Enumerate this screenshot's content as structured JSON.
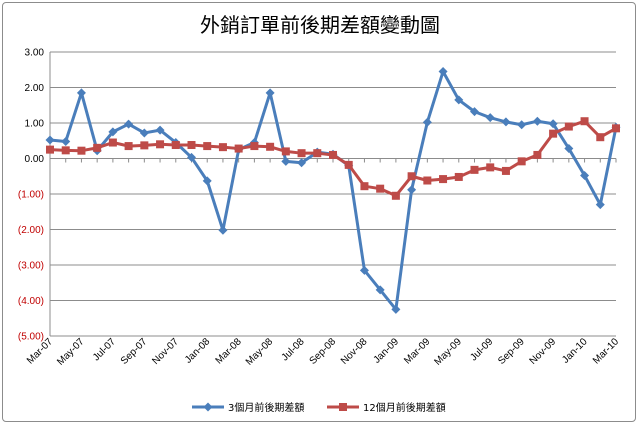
{
  "chart_data": {
    "type": "line",
    "title": "外銷訂單前後期差額變動圖",
    "xlabel": "",
    "ylabel": "",
    "ylim": [
      -5,
      3
    ],
    "y_ticks": [
      "3.00",
      "2.00",
      "1.00",
      "0.00",
      "(1.00)",
      "(2.00)",
      "(3.00)",
      "(4.00)",
      "(5.00)"
    ],
    "y_tick_values": [
      3,
      2,
      1,
      0,
      -1,
      -2,
      -3,
      -4,
      -5
    ],
    "negative_tick_color": "#c00000",
    "grid": true,
    "legend_position": "bottom",
    "x": [
      "Mar-07",
      "Apr-07",
      "May-07",
      "Jun-07",
      "Jul-07",
      "Aug-07",
      "Sep-07",
      "Oct-07",
      "Nov-07",
      "Dec-07",
      "Jan-08",
      "Feb-08",
      "Mar-08",
      "Apr-08",
      "May-08",
      "Jun-08",
      "Jul-08",
      "Aug-08",
      "Sep-08",
      "Oct-08",
      "Nov-08",
      "Dec-08",
      "Jan-09",
      "Feb-09",
      "Mar-09",
      "Apr-09",
      "May-09",
      "Jun-09",
      "Jul-09",
      "Aug-09",
      "Sep-09",
      "Oct-09",
      "Nov-09",
      "Dec-09",
      "Jan-10",
      "Feb-10",
      "Mar-10"
    ],
    "x_tick_labels": [
      "Mar-07",
      "May-07",
      "Jul-07",
      "Sep-07",
      "Nov-07",
      "Jan-08",
      "Mar-08",
      "May-08",
      "Jul-08",
      "Sep-08",
      "Nov-08",
      "Jan-09",
      "Mar-09",
      "May-09",
      "Jul-09",
      "Sep-09",
      "Nov-09",
      "Jan-10",
      "Mar-10"
    ],
    "series": [
      {
        "name": "3個月前後期差額",
        "color": "#4a7ebb",
        "marker": "diamond",
        "values": [
          0.52,
          0.48,
          1.85,
          0.22,
          0.75,
          0.97,
          0.72,
          0.8,
          0.45,
          0.03,
          -0.63,
          -2.02,
          0.25,
          0.45,
          1.85,
          -0.08,
          -0.12,
          0.18,
          0.12,
          -0.2,
          -3.15,
          -3.7,
          -4.25,
          -0.88,
          1.02,
          2.45,
          1.65,
          1.32,
          1.15,
          1.03,
          0.95,
          1.05,
          0.98,
          0.28,
          -0.48,
          -1.3,
          0.88
        ]
      },
      {
        "name": "12個月前後期差額",
        "color": "#be4b48",
        "marker": "square",
        "values": [
          0.25,
          0.23,
          0.22,
          0.3,
          0.45,
          0.35,
          0.37,
          0.4,
          0.38,
          0.38,
          0.35,
          0.32,
          0.28,
          0.35,
          0.33,
          0.2,
          0.15,
          0.15,
          0.1,
          -0.18,
          -0.78,
          -0.85,
          -1.05,
          -0.5,
          -0.62,
          -0.58,
          -0.52,
          -0.32,
          -0.25,
          -0.35,
          -0.08,
          0.1,
          0.7,
          0.9,
          1.05,
          0.6,
          0.85
        ]
      }
    ]
  }
}
